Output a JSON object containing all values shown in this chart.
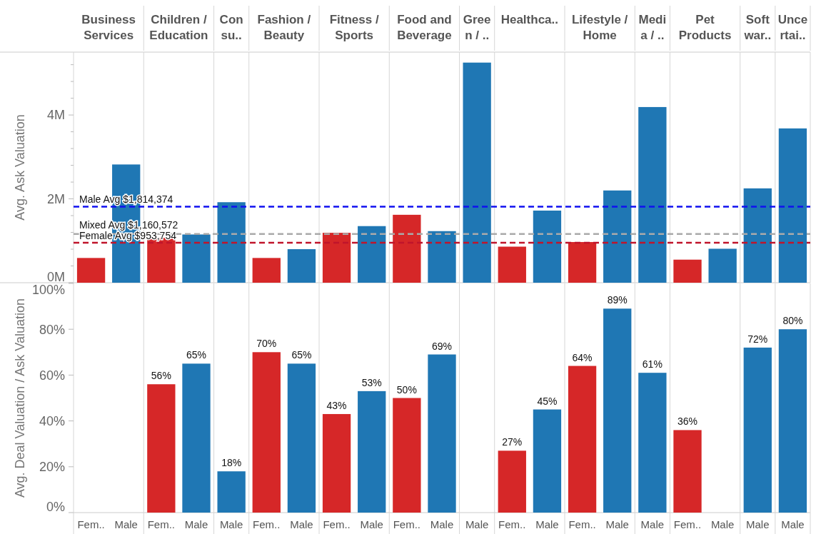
{
  "chart_data": [
    {
      "type": "bar",
      "ylabel": "Avg. Ask Valuation",
      "grid": "x",
      "categories": [
        "Business\nServices",
        null,
        "Children /\nEducation",
        null,
        "Con\nsu..",
        "Fashion /\nBeauty",
        null,
        "Fitness /\nSports",
        null,
        "Food and\nBeverage",
        null,
        "Gree\nn / ..",
        "Healthca..",
        null,
        "Lifestyle /\nHome",
        null,
        "Medi\na / ..",
        "Pet\nProducts",
        null,
        "Soft\nwar..",
        "Unce\nrtai.."
      ],
      "values": [
        0.59,
        2.82,
        1.07,
        1.15,
        1.92,
        0.59,
        0.8,
        1.19,
        1.35,
        1.62,
        1.23,
        5.25,
        0.86,
        1.72,
        0.97,
        2.2,
        4.19,
        0.55,
        0.81,
        2.25,
        3.68
      ],
      "colors": [
        "#d62728",
        "#1f77b4",
        "#d62728",
        "#1f77b4",
        "#1f77b4",
        "#d62728",
        "#1f77b4",
        "#d62728",
        "#1f77b4",
        "#d62728",
        "#1f77b4",
        "#1f77b4",
        "#d62728",
        "#1f77b4",
        "#d62728",
        "#1f77b4",
        "#1f77b4",
        "#d62728",
        "#1f77b4",
        "#1f77b4",
        "#1f77b4"
      ],
      "ylim": [
        0,
        5.5
      ],
      "yticks": [
        {
          "value": 0,
          "label": "0M"
        },
        {
          "value": 0.4,
          "label": null
        },
        {
          "value": 0.8,
          "label": null
        },
        {
          "value": 1.2,
          "label": null
        },
        {
          "value": 1.6,
          "label": null
        },
        {
          "value": 2,
          "label": "2M"
        },
        {
          "value": 2.4,
          "label": null
        },
        {
          "value": 2.8,
          "label": null
        },
        {
          "value": 3.2,
          "label": null
        },
        {
          "value": 3.6,
          "label": null
        },
        {
          "value": 4,
          "label": "4M"
        },
        {
          "value": 4.4,
          "label": null
        },
        {
          "value": 4.8,
          "label": null
        },
        {
          "value": 5.2,
          "label": null
        }
      ],
      "ref_lines": [
        {
          "axis": "y",
          "value": 1.814374,
          "label": "Male Avg $1,814,374",
          "color": "#1010f0",
          "line_style": "dashed"
        },
        {
          "axis": "y",
          "value": 1.160572,
          "label": "Mixed Avg $1,160,572",
          "color": "#aaaaaa",
          "line_style": "dashed"
        },
        {
          "axis": "y",
          "value": 0.953754,
          "label": "Female Avg $953,754",
          "color": "#c0142b",
          "line_style": "dashed"
        }
      ]
    },
    {
      "type": "bar",
      "ylabel": "Avg. Deal Valuation / Ask Valuation",
      "grid": "x",
      "categories": [
        "Fem..",
        "Male",
        "Fem..",
        "Male",
        "Male",
        "Fem..",
        "Male",
        "Fem..",
        "Male",
        "Fem..",
        "Male",
        "Male",
        "Fem..",
        "Male",
        "Fem..",
        "Male",
        "Male",
        "Fem..",
        "Male",
        "Male",
        "Male"
      ],
      "values": [
        null,
        null,
        56,
        65,
        18,
        70,
        65,
        43,
        53,
        50,
        69,
        null,
        27,
        45,
        64,
        89,
        61,
        36,
        null,
        72,
        80
      ],
      "value_labels": [
        null,
        null,
        "56%",
        "65%",
        "18%",
        "70%",
        "65%",
        "43%",
        "53%",
        "50%",
        "69%",
        null,
        "27%",
        "45%",
        "64%",
        "89%",
        "61%",
        "36%",
        null,
        "72%",
        "80%"
      ],
      "colors": [
        null,
        null,
        "#d62728",
        "#1f77b4",
        "#1f77b4",
        "#d62728",
        "#1f77b4",
        "#d62728",
        "#1f77b4",
        "#d62728",
        "#1f77b4",
        null,
        "#d62728",
        "#1f77b4",
        "#d62728",
        "#1f77b4",
        "#1f77b4",
        "#d62728",
        null,
        "#1f77b4",
        "#1f77b4"
      ],
      "ylim": [
        0,
        100
      ],
      "yticks": [
        {
          "value": 0,
          "label": "0%"
        },
        {
          "value": 20,
          "label": "20%"
        },
        {
          "value": 40,
          "label": "40%"
        },
        {
          "value": 60,
          "label": "60%"
        },
        {
          "value": 80,
          "label": "80%"
        },
        {
          "value": 100,
          "label": "100%"
        }
      ]
    }
  ]
}
